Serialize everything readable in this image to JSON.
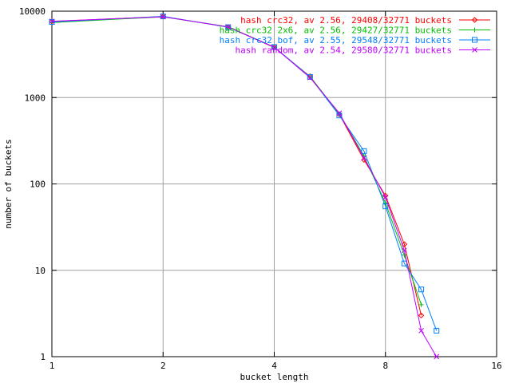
{
  "chart_data": {
    "type": "line",
    "title": "",
    "xlabel": "bucket length",
    "ylabel": "number of buckets",
    "x_scale": "log2",
    "y_scale": "log10",
    "xlim": [
      1,
      16
    ],
    "ylim": [
      1,
      10000
    ],
    "x_ticks": [
      {
        "value": 1,
        "label": "1"
      },
      {
        "value": 2,
        "label": "2"
      },
      {
        "value": 4,
        "label": "4"
      },
      {
        "value": 8,
        "label": "8"
      },
      {
        "value": 16,
        "label": "16"
      }
    ],
    "y_ticks": [
      {
        "value": 1,
        "label": "1"
      },
      {
        "value": 10,
        "label": "10"
      },
      {
        "value": 100,
        "label": "100"
      },
      {
        "value": 1000,
        "label": "1000"
      },
      {
        "value": 10000,
        "label": "10000"
      }
    ],
    "grid": true,
    "legend_position": "top-right",
    "series": [
      {
        "name": "hash crc32, av 2.56, 29408/32771 buckets",
        "color": "#ff0000",
        "marker": "diamond",
        "x": [
          1,
          2,
          3,
          4,
          5,
          6,
          7,
          8,
          9,
          10
        ],
        "y": [
          7600,
          8650,
          6550,
          3800,
          1760,
          640,
          190,
          73,
          20,
          3
        ]
      },
      {
        "name": "hash crc32 2x6, av 2.56, 29427/32771 buckets",
        "color": "#00c000",
        "marker": "plus",
        "x": [
          1,
          2,
          3,
          4,
          5,
          6,
          7,
          8,
          9,
          10
        ],
        "y": [
          7400,
          8600,
          6600,
          3830,
          1740,
          650,
          210,
          60,
          15,
          4
        ]
      },
      {
        "name": "hash crc32 bof, av 2.55, 29548/32771 buckets",
        "color": "#0080ff",
        "marker": "square",
        "x": [
          1,
          2,
          3,
          4,
          5,
          6,
          7,
          8,
          9,
          10,
          11
        ],
        "y": [
          7500,
          8700,
          6520,
          3850,
          1730,
          620,
          240,
          55,
          12,
          6,
          2
        ]
      },
      {
        "name": "hash random, av 2.54, 29580/32771 buckets",
        "color": "#c000ff",
        "marker": "cross",
        "x": [
          1,
          2,
          3,
          4,
          5,
          6,
          7,
          8,
          9,
          10,
          11
        ],
        "y": [
          7650,
          8620,
          6580,
          3820,
          1700,
          660,
          200,
          70,
          17,
          2,
          1
        ]
      }
    ]
  }
}
